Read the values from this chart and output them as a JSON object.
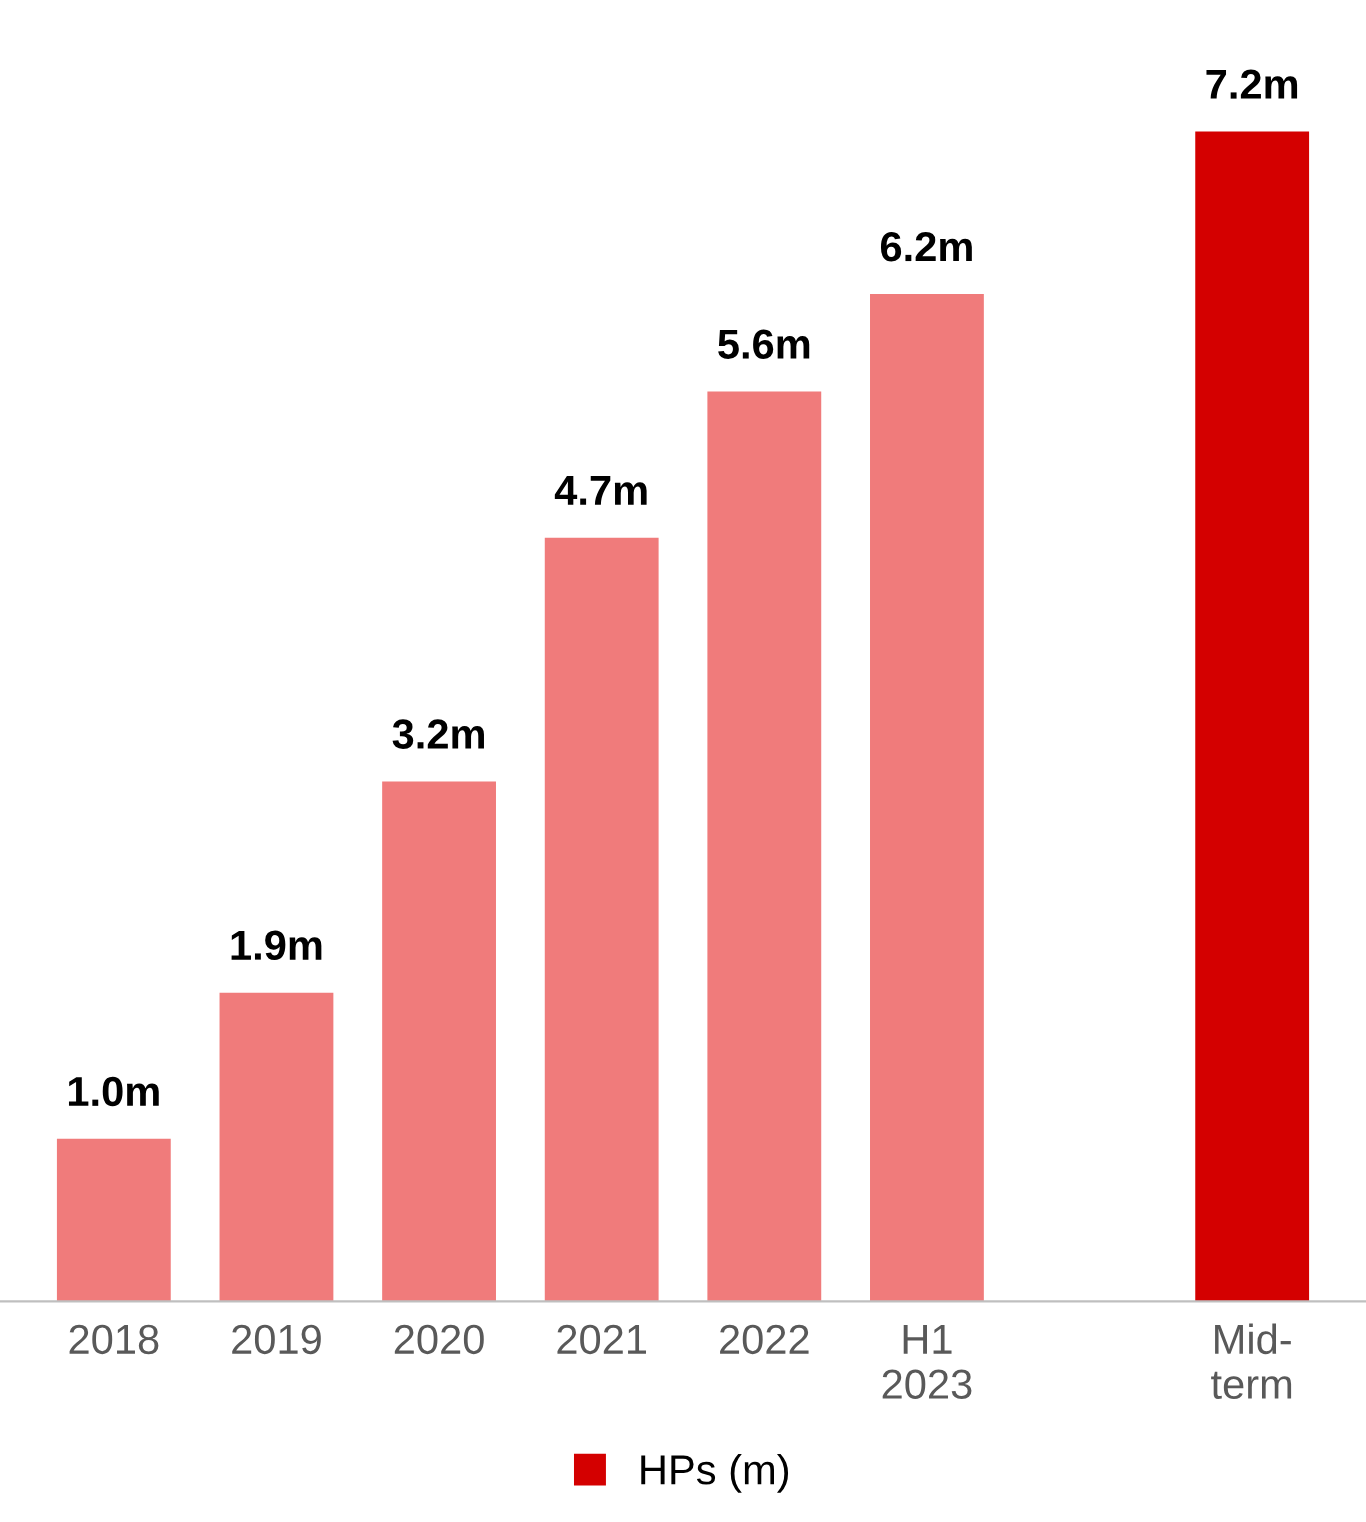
{
  "chart_data": {
    "type": "bar",
    "categories": [
      "2018",
      "2019",
      "2020",
      "2021",
      "2022",
      "H1\n2023",
      null,
      "Mid-\nterm"
    ],
    "series": [
      {
        "name": "HPs (m)",
        "color": "#d40000",
        "colors": [
          "#f07b7b",
          "#f07b7b",
          "#f07b7b",
          "#f07b7b",
          "#f07b7b",
          "#f07b7b",
          null,
          "#d40000"
        ],
        "values": [
          1.0,
          1.9,
          3.2,
          4.7,
          5.6,
          6.2,
          null,
          7.2
        ],
        "value_labels": [
          "1.0m",
          "1.9m",
          "3.2m",
          "4.7m",
          "5.6m",
          "6.2m",
          null,
          "7.2m"
        ]
      }
    ],
    "legend": "bottom",
    "grid": false
  }
}
